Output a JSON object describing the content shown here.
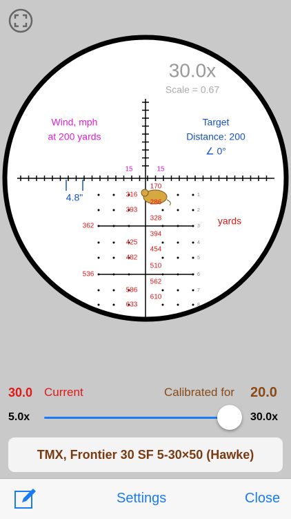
{
  "scope": {
    "zoom": "30.0x",
    "scale": "Scale = 0.67",
    "wind": [
      "Wind, mph",
      "at 200 yards"
    ],
    "target": [
      "Target",
      "Distance: 200",
      "∠ 0°"
    ],
    "wind_marks": [
      "15",
      "15"
    ],
    "offset": "4.8\"",
    "range_labels": [
      "316",
      "170",
      "286",
      "393",
      "328",
      "362",
      "394",
      "425",
      "454",
      "482",
      "510",
      "536",
      "562",
      "586",
      "610",
      "633"
    ],
    "row_numbers": [
      "1",
      "2",
      "3",
      "4",
      "5",
      "6",
      "7",
      "8"
    ],
    "units": "yards"
  },
  "controls": {
    "current_value": "30.0",
    "current_label": "Current",
    "calibrated_label": "Calibrated for",
    "calibrated_value": "20.0",
    "min": "5.0x",
    "max": "30.0x",
    "scope_name": "TMX, Frontier 30 SF 5-30×50 (Hawke)"
  },
  "toolbar": {
    "settings": "Settings",
    "close": "Close"
  }
}
